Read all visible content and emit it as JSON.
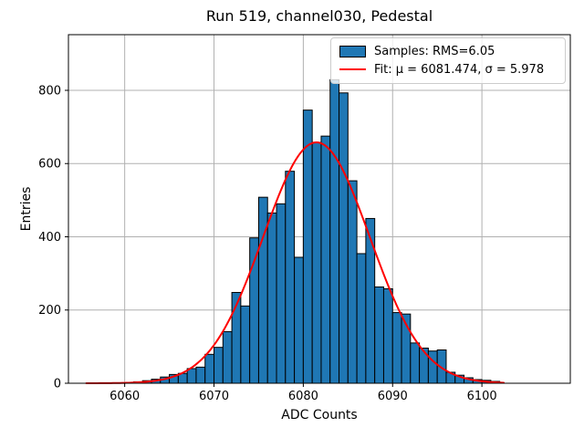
{
  "chart_data": {
    "type": "bar",
    "subtype": "histogram-with-gaussian-fit",
    "title": "Run 519, channel030, Pedestal",
    "xlabel": "ADC Counts",
    "ylabel": "Entries",
    "xlim": [
      6053.7,
      6109.9
    ],
    "ylim": [
      0,
      952
    ],
    "xticks": [
      6060,
      6070,
      6080,
      6090,
      6100
    ],
    "yticks": [
      0,
      200,
      400,
      600,
      800
    ],
    "grid": true,
    "grid_color": "#b0b0b0",
    "histogram": {
      "bin_start": 6061,
      "bin_width": 1,
      "counts": [
        4,
        7,
        11,
        17,
        24,
        27,
        40,
        44,
        79,
        98,
        141,
        248,
        211,
        397,
        508,
        465,
        490,
        579,
        344,
        746,
        658,
        675,
        829,
        793,
        553,
        354,
        450,
        263,
        258,
        193,
        189,
        110,
        96,
        88,
        91,
        30,
        22,
        15,
        10,
        8,
        5
      ],
      "rms": "6.05",
      "fill_color": "#1f77b4",
      "edge_color": "#000000"
    },
    "fit": {
      "mu": 6081.474,
      "sigma": 5.978,
      "amplitude": 658,
      "x_range": [
        6055.7,
        6102.5
      ],
      "color": "#ff0000"
    },
    "legend": {
      "position": "upper right",
      "entries": [
        {
          "label": "Samples: RMS=6.05",
          "marker": "patch",
          "color": "#1f77b4"
        },
        {
          "label": "Fit: μ = 6081.474, σ = 5.978",
          "marker": "line",
          "color": "#ff0000"
        }
      ]
    }
  }
}
